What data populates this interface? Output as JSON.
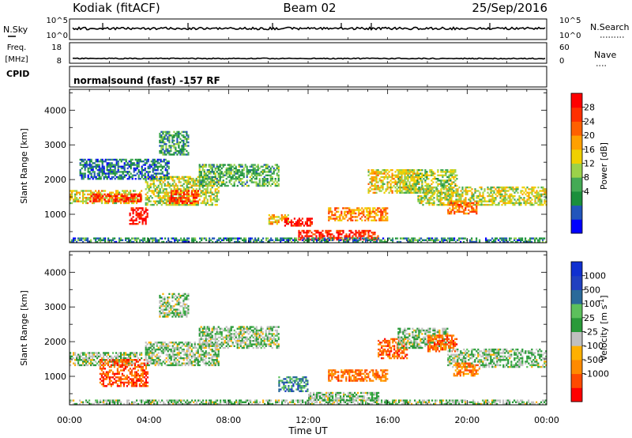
{
  "header": {
    "station": "Kodiak (fitACF)",
    "beam": "Beam 02",
    "date": "25/Sep/2016"
  },
  "strip_labels": {
    "nsky": "N.Sky",
    "freq": "Freq.",
    "freq_unit": "[MHz]",
    "cpid": "CPID",
    "nsearch": "N.Search",
    "nave": "Nave",
    "nsky_ticks": [
      "10^5",
      "10^0"
    ],
    "nsearch_ticks": [
      "10^5",
      "10^0"
    ],
    "freq_ticks": [
      "18",
      "8"
    ],
    "nave_ticks": [
      "60",
      "0"
    ]
  },
  "cpid_text": "normalsound (fast) -157 RF",
  "colors": {
    "trace": "#000000",
    "ground_scatter": "#c0c0c0"
  },
  "chart_data": [
    {
      "type": "heatmap",
      "name": "power",
      "ylabel": "Slant Range [km]",
      "xlim_hours": [
        0,
        24
      ],
      "ylim_km": [
        180,
        4600
      ],
      "yticks": [
        1000,
        2000,
        3000,
        4000
      ],
      "colorbar": {
        "label": "Power [dB]",
        "ticks": [
          "28",
          "24",
          "20",
          "16",
          "12",
          "8",
          "4"
        ],
        "colors": [
          "#0000ff",
          "#2255bb",
          "#1a8f3c",
          "#44aa55",
          "#9bd24a",
          "#f0d000",
          "#ffa000",
          "#ff6000",
          "#ff3000",
          "#ff0000"
        ]
      },
      "echo_bands": [
        {
          "t0": 0.0,
          "t1": 3.6,
          "r0": 1300,
          "r1": 1700,
          "level": 0.55
        },
        {
          "t0": 1.0,
          "t1": 3.6,
          "r0": 1350,
          "r1": 1600,
          "level": 0.9
        },
        {
          "t0": 3.0,
          "t1": 3.9,
          "r0": 700,
          "r1": 1200,
          "level": 0.95
        },
        {
          "t0": 3.8,
          "t1": 7.5,
          "r0": 1250,
          "r1": 2100,
          "level": 0.5
        },
        {
          "t0": 5.0,
          "t1": 6.5,
          "r0": 1300,
          "r1": 1700,
          "level": 0.85
        },
        {
          "t0": 6.5,
          "t1": 10.5,
          "r0": 1800,
          "r1": 2450,
          "level": 0.35
        },
        {
          "t0": 0.5,
          "t1": 5.0,
          "r0": 2000,
          "r1": 2600,
          "level": 0.2
        },
        {
          "t0": 4.5,
          "t1": 6.0,
          "r0": 2700,
          "r1": 3400,
          "level": 0.3
        },
        {
          "t0": 10.0,
          "t1": 11.0,
          "r0": 700,
          "r1": 1000,
          "level": 0.6
        },
        {
          "t0": 10.8,
          "t1": 12.2,
          "r0": 650,
          "r1": 900,
          "level": 0.95
        },
        {
          "t0": 11.5,
          "t1": 15.5,
          "r0": 250,
          "r1": 550,
          "level": 0.9
        },
        {
          "t0": 13.0,
          "t1": 16.0,
          "r0": 800,
          "r1": 1200,
          "level": 0.7
        },
        {
          "t0": 15.0,
          "t1": 17.5,
          "r0": 1600,
          "r1": 2300,
          "level": 0.55
        },
        {
          "t0": 16.5,
          "t1": 19.5,
          "r0": 1600,
          "r1": 2300,
          "level": 0.45
        },
        {
          "t0": 17.5,
          "t1": 24.0,
          "r0": 1250,
          "r1": 1800,
          "level": 0.5
        },
        {
          "t0": 19.0,
          "t1": 20.5,
          "r0": 1000,
          "r1": 1400,
          "level": 0.75
        },
        {
          "t0": 0.0,
          "t1": 24.0,
          "r0": 180,
          "r1": 330,
          "level": 0.25
        }
      ]
    },
    {
      "type": "heatmap",
      "name": "velocity",
      "ylabel": "Slant Range [km]",
      "xlabel": "Time UT",
      "xticks": [
        "00:00",
        "04:00",
        "08:00",
        "12:00",
        "16:00",
        "20:00",
        "00:00"
      ],
      "xlim_hours": [
        0,
        24
      ],
      "ylim_km": [
        180,
        4600
      ],
      "yticks": [
        1000,
        2000,
        3000,
        4000
      ],
      "colorbar": {
        "label": "Velocity [m s",
        "label_sup": "-1",
        "label_close": "]",
        "ticks": [
          "1000",
          "500",
          "100",
          "25",
          "-25",
          "-100",
          "-500",
          "-1000"
        ],
        "colors": [
          "#ff0000",
          "#ff4a00",
          "#ff8a00",
          "#ffb000",
          "#c0c0c0",
          "#2a9a3a",
          "#5cc05c",
          "#2a6a9a",
          "#2040c0",
          "#1030d0"
        ]
      },
      "echo_bands": [
        {
          "t0": 0.0,
          "t1": 3.6,
          "r0": 1300,
          "r1": 1700,
          "level": 0.5
        },
        {
          "t0": 1.5,
          "t1": 3.9,
          "r0": 700,
          "r1": 1500,
          "level": 0.15
        },
        {
          "t0": 3.8,
          "t1": 7.5,
          "r0": 1300,
          "r1": 2000,
          "level": 0.5
        },
        {
          "t0": 6.5,
          "t1": 10.5,
          "r0": 1800,
          "r1": 2450,
          "level": 0.5
        },
        {
          "t0": 4.5,
          "t1": 6.0,
          "r0": 2700,
          "r1": 3400,
          "level": 0.5
        },
        {
          "t0": 10.5,
          "t1": 12.0,
          "r0": 550,
          "r1": 1000,
          "level": 0.72
        },
        {
          "t0": 12.0,
          "t1": 15.5,
          "r0": 300,
          "r1": 550,
          "level": 0.5
        },
        {
          "t0": 13.0,
          "t1": 16.0,
          "r0": 850,
          "r1": 1200,
          "level": 0.22
        },
        {
          "t0": 15.5,
          "t1": 17.0,
          "r0": 1500,
          "r1": 2100,
          "level": 0.18
        },
        {
          "t0": 16.5,
          "t1": 19.0,
          "r0": 1800,
          "r1": 2400,
          "level": 0.5
        },
        {
          "t0": 18.0,
          "t1": 19.5,
          "r0": 1700,
          "r1": 2200,
          "level": 0.2
        },
        {
          "t0": 19.0,
          "t1": 24.0,
          "r0": 1250,
          "r1": 1800,
          "level": 0.5
        },
        {
          "t0": 19.3,
          "t1": 20.6,
          "r0": 1000,
          "r1": 1400,
          "level": 0.25
        },
        {
          "t0": 0.0,
          "t1": 24.0,
          "r0": 180,
          "r1": 330,
          "level": 0.5
        }
      ]
    }
  ]
}
